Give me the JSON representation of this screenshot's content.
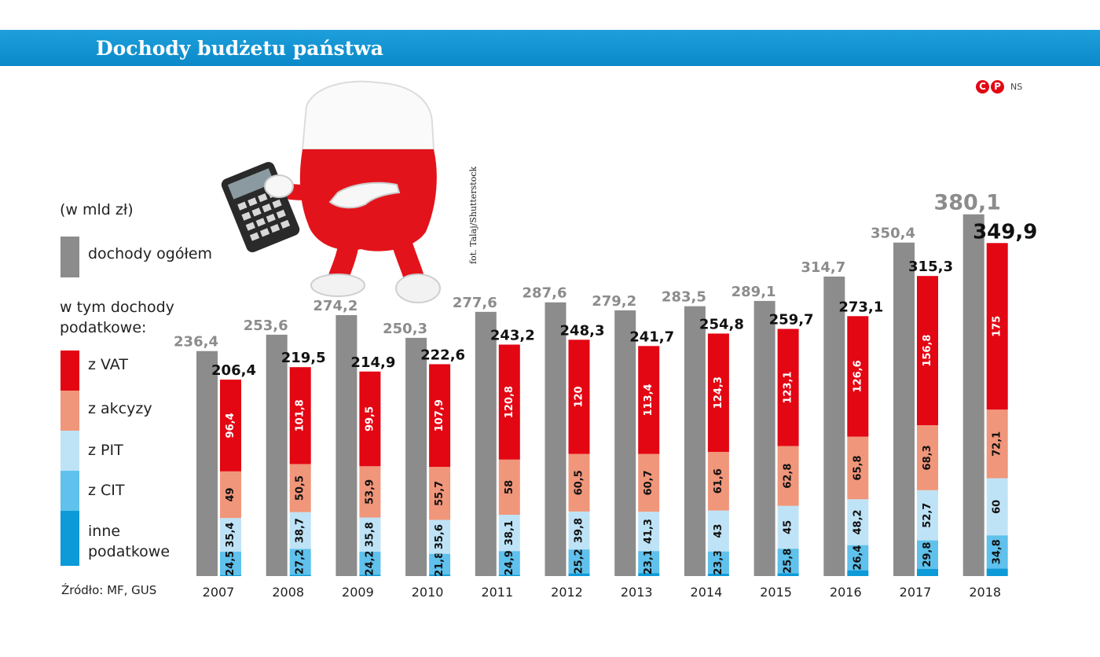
{
  "header": {
    "title": "Dochody budżetu państwa"
  },
  "copyright": {
    "symbols": [
      "C",
      "P"
    ],
    "author": "NS"
  },
  "photo_credit": "fot. Talaj/Shutterstock",
  "legend": {
    "unit": "(w mld zł)",
    "total_label": "dochody ogółem",
    "subheader": "w tym dochody podatkowe:",
    "items": [
      {
        "label": "z VAT",
        "color": "#e30613"
      },
      {
        "label": "z akcyzy",
        "color": "#f0967a"
      },
      {
        "label": "z PIT",
        "color": "#bfe3f6"
      },
      {
        "label": "z CIT",
        "color": "#5fc1ec"
      },
      {
        "label": "inne podatkowe",
        "color": "#0d9ad8"
      }
    ]
  },
  "source": "Źródło: MF, GUS",
  "colors": {
    "total": "#8c8c8c",
    "vat": "#e30613",
    "akcyza": "#f0967a",
    "pit": "#bfe3f6",
    "cit": "#5fc1ec",
    "inne": "#0d9ad8"
  },
  "chart_data": {
    "type": "bar",
    "title": "Dochody budżetu państwa",
    "unit": "(w mld zł)",
    "categories": [
      "2007",
      "2008",
      "2009",
      "2010",
      "2011",
      "2012",
      "2013",
      "2014",
      "2015",
      "2016",
      "2017",
      "2018"
    ],
    "total_labels": [
      "236,4",
      "253,6",
      "274,2",
      "250,3",
      "277,6",
      "287,6",
      "279,2",
      "283,5",
      "289,1",
      "314,7",
      "350,4",
      "380,1"
    ],
    "tax_total_labels": [
      "206,4",
      "219,5",
      "214,9",
      "222,6",
      "243,2",
      "248,3",
      "241,7",
      "254,8",
      "259,7",
      "273,1",
      "315,3",
      "349,9"
    ],
    "series": [
      {
        "name": "dochody ogółem",
        "values": [
          236.4,
          253.6,
          274.2,
          250.3,
          277.6,
          287.6,
          279.2,
          283.5,
          289.1,
          314.7,
          350.4,
          380.1
        ]
      },
      {
        "name": "z VAT",
        "values": [
          96.4,
          101.8,
          99.5,
          107.9,
          120.8,
          120,
          113.4,
          124.3,
          123.1,
          126.6,
          156.8,
          175
        ],
        "labels": [
          "96,4",
          "101,8",
          "99,5",
          "107,9",
          "120,8",
          "120",
          "113,4",
          "124,3",
          "123,1",
          "126,6",
          "156,8",
          "175"
        ]
      },
      {
        "name": "z akcyzy",
        "values": [
          49,
          50.5,
          53.9,
          55.7,
          58,
          60.5,
          60.7,
          61.6,
          62.8,
          65.8,
          68.3,
          72.1
        ],
        "labels": [
          "49",
          "50,5",
          "53,9",
          "55,7",
          "58",
          "60,5",
          "60,7",
          "61,6",
          "62,8",
          "65,8",
          "68,3",
          "72,1"
        ]
      },
      {
        "name": "z PIT",
        "values": [
          35.4,
          38.7,
          35.8,
          35.6,
          38.1,
          39.8,
          41.3,
          43,
          45,
          48.2,
          52.7,
          60
        ],
        "labels": [
          "35,4",
          "38,7",
          "35,8",
          "35,6",
          "38,1",
          "39,8",
          "41,3",
          "43",
          "45",
          "48,2",
          "52,7",
          "60"
        ]
      },
      {
        "name": "z CIT",
        "values": [
          24.5,
          27.2,
          24.2,
          21.8,
          24.9,
          25.2,
          23.1,
          23.3,
          25.8,
          26.4,
          29.8,
          34.8
        ],
        "labels": [
          "24,5",
          "27,2",
          "24,2",
          "21,8",
          "24,9",
          "25,2",
          "23,1",
          "23,3",
          "25,8",
          "26,4",
          "29,8",
          "34,8"
        ]
      },
      {
        "name": "inne podatkowe",
        "values": [
          1.1,
          1.3,
          1.5,
          1.6,
          1.4,
          2.8,
          3.2,
          2.6,
          3,
          6.1,
          7.7,
          8
        ]
      }
    ],
    "xlabel": "",
    "ylabel": "",
    "grid": false,
    "legend_position": "left"
  }
}
